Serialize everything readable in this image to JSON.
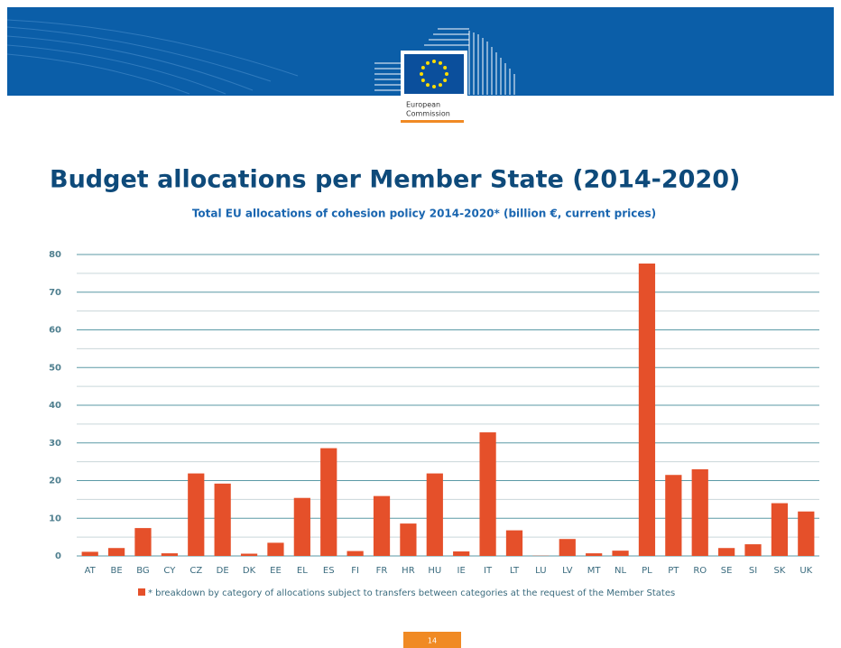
{
  "header": {
    "logo_text": [
      "European",
      "Commission"
    ]
  },
  "chart_data": {
    "type": "bar",
    "title": "Budget allocations per Member State (2014-2020)",
    "subtitle": "Total EU allocations of cohesion policy 2014-2020* (billion €, current prices)",
    "categories": [
      "AT",
      "BE",
      "BG",
      "CY",
      "CZ",
      "DE",
      "DK",
      "EE",
      "EL",
      "ES",
      "FI",
      "FR",
      "HR",
      "HU",
      "IE",
      "IT",
      "LT",
      "LU",
      "LV",
      "MT",
      "NL",
      "PL",
      "PT",
      "RO",
      "SE",
      "SI",
      "SK",
      "UK"
    ],
    "values": [
      1.1,
      2.1,
      7.4,
      0.7,
      21.9,
      19.2,
      0.6,
      3.5,
      15.4,
      28.6,
      1.3,
      15.9,
      8.6,
      21.9,
      1.2,
      32.8,
      6.8,
      0.06,
      4.5,
      0.7,
      1.4,
      77.6,
      21.5,
      23.0,
      2.1,
      3.1,
      14.0,
      11.8
    ],
    "color": "#e5502a",
    "ylim": [
      0,
      80
    ],
    "yticks": [
      0,
      10,
      20,
      30,
      40,
      50,
      60,
      70,
      80
    ],
    "minor_yticks": [
      5,
      15,
      25,
      35,
      45,
      55,
      65,
      75
    ],
    "grid": true,
    "note": "* breakdown by category of allocations subject to transfers between categories at the request of the Member States"
  },
  "page_number": "14"
}
